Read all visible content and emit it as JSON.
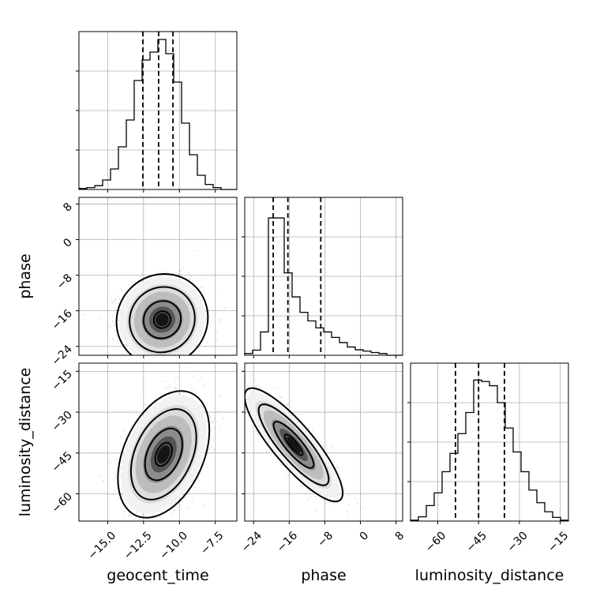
{
  "chart_data": {
    "type": "corner",
    "parameters": [
      "geocent_time",
      "phase",
      "luminosity_distance"
    ],
    "axes": {
      "geocent_time": {
        "label": "geocent_time",
        "range": [
          -17.0,
          -6.0
        ],
        "ticks": [
          -15.0,
          -12.5,
          -10.0,
          -7.5
        ],
        "tick_labels": [
          "−15.0",
          "−12.5",
          "−10.0",
          "−7.5"
        ]
      },
      "phase": {
        "label": "phase",
        "range": [
          -26.0,
          9.5
        ],
        "ticks": [
          -24,
          -16,
          -8,
          0,
          8
        ],
        "tick_labels": [
          "−24",
          "−16",
          "−8",
          "0",
          "8"
        ]
      },
      "luminosity_distance": {
        "label": "luminosity_distance",
        "range": [
          -70.0,
          -12.0
        ],
        "ticks": [
          -60,
          -45,
          -30,
          -15
        ],
        "tick_labels": [
          "−60",
          "−45",
          "−30",
          "−15"
        ]
      }
    },
    "marginals": [
      {
        "parameter": "geocent_time",
        "bin_edges": [
          -17.0,
          -16.45,
          -15.9,
          -15.35,
          -14.8,
          -14.25,
          -13.7,
          -13.15,
          -12.6,
          -12.05,
          -11.5,
          -10.95,
          -10.4,
          -9.85,
          -9.3,
          -8.75,
          -8.2,
          -7.65,
          -7.1,
          -6.55,
          -6.0
        ],
        "counts": [
          0.3,
          0.6,
          1.2,
          3,
          6.5,
          13.5,
          22,
          34.5,
          41,
          43.5,
          47.5,
          43,
          34,
          21,
          11,
          4.5,
          1.6,
          0.6,
          0,
          0
        ],
        "quantiles": [
          -12.55,
          -11.45,
          -10.45
        ],
        "ylim": [
          0,
          50
        ]
      },
      {
        "parameter": "phase",
        "bin_edges": [
          -26.0,
          -24.225,
          -22.45,
          -20.675,
          -18.9,
          -17.125,
          -15.35,
          -13.575,
          -11.8,
          -10.025,
          -8.25,
          -6.475,
          -4.7,
          -2.925,
          -1.15,
          0.625,
          2.4,
          4.175,
          5.95,
          7.725,
          9.5
        ],
        "counts": [
          0.5,
          1.5,
          6.8,
          40,
          40,
          24,
          17,
          12.5,
          10,
          8,
          6.8,
          5.2,
          3.7,
          2.4,
          1.6,
          1.2,
          0.8,
          0.5,
          0,
          0
        ],
        "quantiles": [
          -19.6,
          -16.3,
          -8.9
        ],
        "ylim": [
          0,
          46
        ]
      },
      {
        "parameter": "luminosity_distance",
        "bin_edges": [
          -70.0,
          -67.1,
          -64.2,
          -61.3,
          -58.4,
          -55.5,
          -52.6,
          -49.7,
          -46.8,
          -43.9,
          -41.0,
          -38.1,
          -35.2,
          -32.3,
          -29.4,
          -26.5,
          -23.6,
          -20.7,
          -17.8,
          -14.9,
          -12.0
        ],
        "counts": [
          0.3,
          1.5,
          5.5,
          10,
          17.5,
          24,
          31,
          38.5,
          50,
          49.5,
          48,
          42,
          33,
          24.5,
          17.5,
          11,
          6.5,
          3.3,
          1.3,
          0.3
        ],
        "quantiles": [
          -53.5,
          -45.0,
          -35.5
        ],
        "ylim": [
          0,
          56
        ]
      }
    ],
    "joints": [
      {
        "x": "geocent_time",
        "y": "phase",
        "center": [
          -11.2,
          -18.0
        ],
        "sd": [
          1.3,
          4.2
        ],
        "rho": 0.05
      },
      {
        "x": "geocent_time",
        "y": "luminosity_distance",
        "center": [
          -11.1,
          -45.5
        ],
        "sd": [
          1.3,
          9.5
        ],
        "rho": 0.38
      },
      {
        "x": "phase",
        "y": "luminosity_distance",
        "center": [
          -15.0,
          -42.0
        ],
        "sd": [
          4.5,
          8.5
        ],
        "rho": -0.85
      }
    ],
    "grid": true,
    "colors": {
      "line": "#000000",
      "grid": "#b0b0b0",
      "scatter": "#808080"
    }
  }
}
